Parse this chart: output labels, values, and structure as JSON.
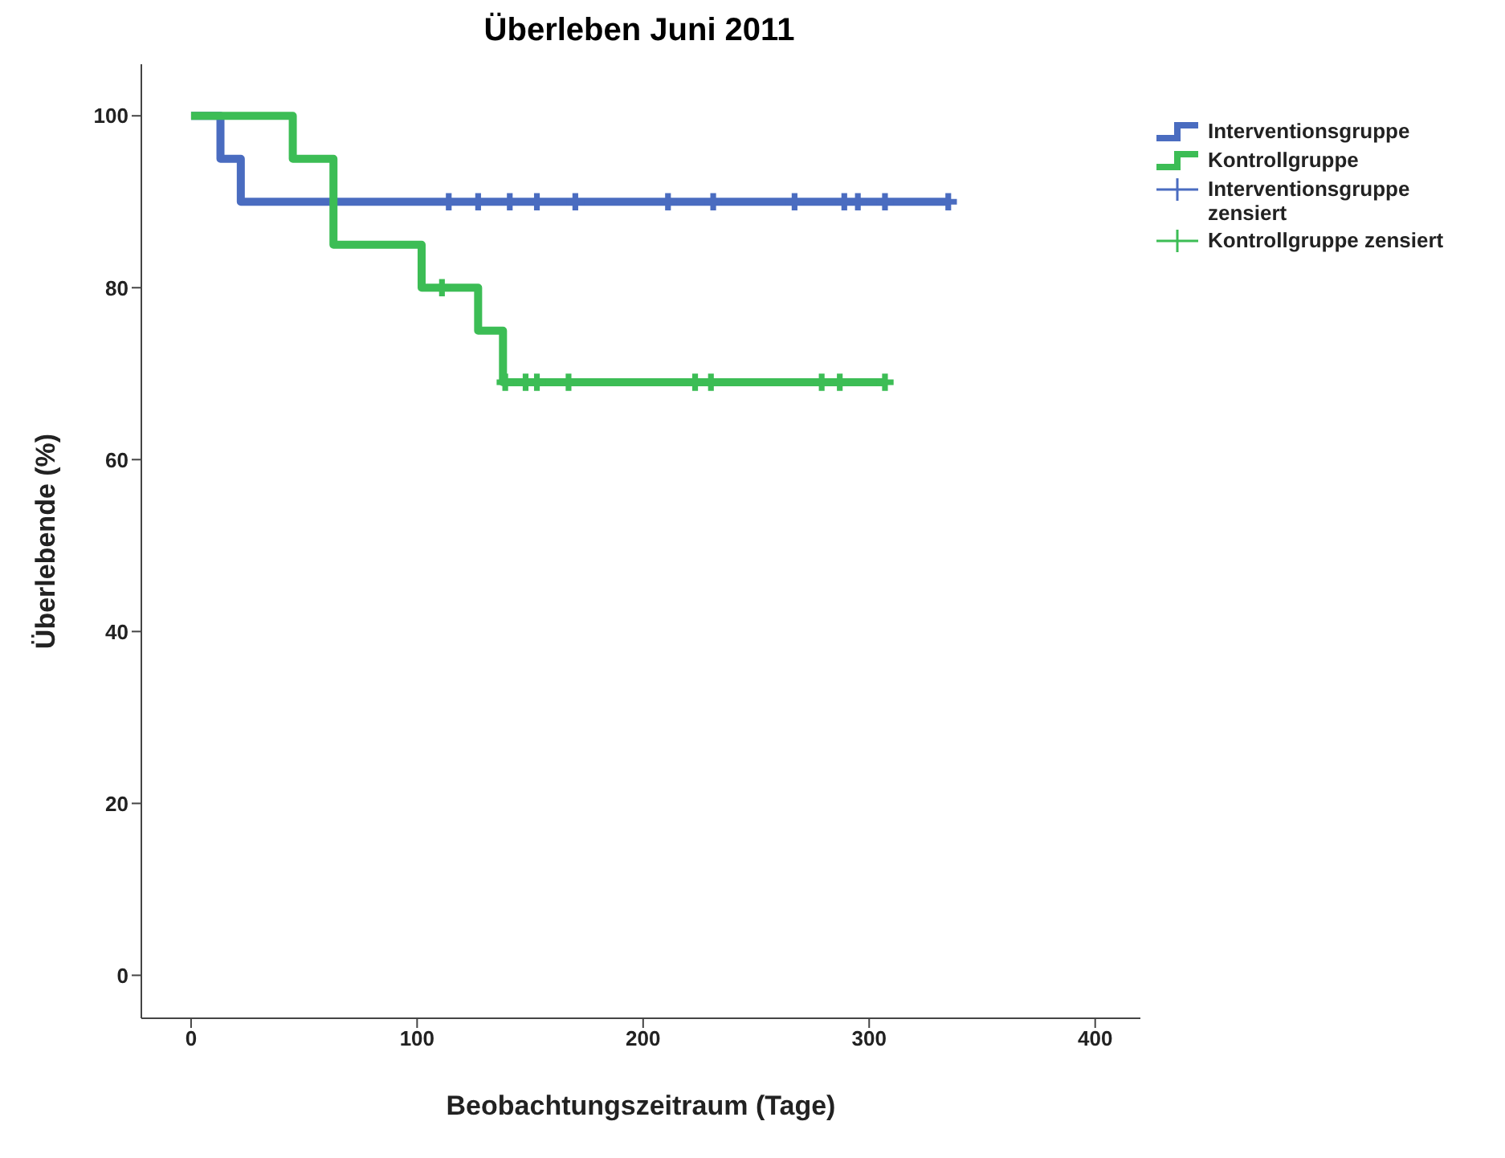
{
  "chart_data": {
    "type": "step",
    "title": "Überleben Juni 2011",
    "xlabel": "Beobachtungszeitraum (Tage)",
    "ylabel": "Überlebende (%)",
    "xlim": [
      -22,
      420
    ],
    "xticks": [
      0,
      100,
      200,
      300,
      400
    ],
    "ylim": [
      -5,
      106
    ],
    "yticks": [
      0,
      20,
      40,
      60,
      80,
      100
    ],
    "grid": false,
    "legend": "right",
    "line_style": "solid",
    "series": [
      {
        "name": "Interventionsgruppe",
        "color": "#4a6cc0",
        "x": [
          0,
          13,
          22,
          335
        ],
        "values": [
          100,
          95,
          90,
          90
        ]
      },
      {
        "name": "Kontrollgruppe",
        "color": "#3cbd55",
        "x": [
          0,
          45,
          63,
          102,
          127,
          138,
          308
        ],
        "values": [
          100,
          95,
          85,
          80,
          75,
          69,
          69
        ]
      },
      {
        "name": "Interventionsgruppe zensiert",
        "type": "scatter",
        "marker": "cross",
        "color": "#4a6cc0",
        "x": [
          114,
          127,
          141,
          153,
          170,
          211,
          231,
          267,
          289,
          295,
          307,
          335
        ],
        "values": [
          90,
          90,
          90,
          90,
          90,
          90,
          90,
          90,
          90,
          90,
          90,
          90
        ]
      },
      {
        "name": "Kontrollgruppe zensiert",
        "type": "scatter",
        "marker": "cross",
        "color": "#3cbd55",
        "x": [
          111,
          139,
          148,
          153,
          167,
          223,
          230,
          279,
          287,
          307
        ],
        "values": [
          80,
          69,
          69,
          69,
          69,
          69,
          69,
          69,
          69,
          69
        ]
      }
    ]
  }
}
